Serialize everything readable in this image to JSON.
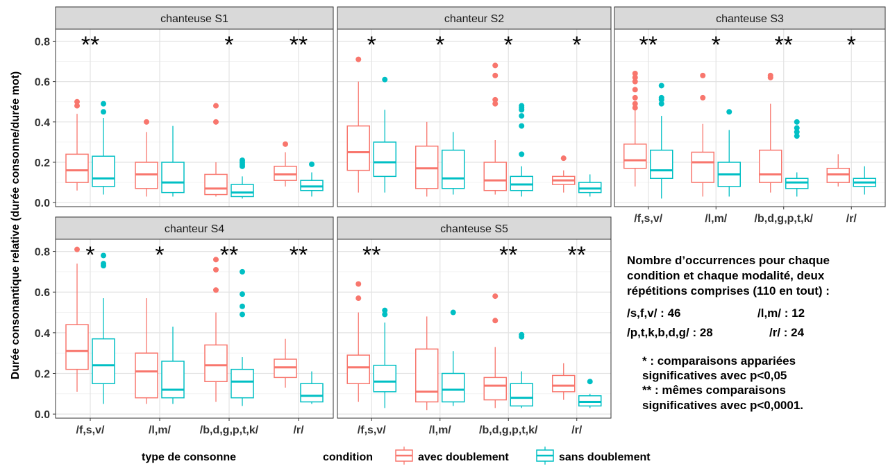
{
  "chart_data": {
    "type": "box",
    "ylabel": "Durée consonantique relative (durée consonne/durée mot)",
    "xlabel": "type de consonne",
    "categories": [
      "/f,s,v/",
      "/l,m/",
      "/b,d,g,p,t,k/",
      "/r/"
    ],
    "yticks": [
      "0.0",
      "0.2",
      "0.4",
      "0.6",
      "0.8"
    ],
    "ylim": [
      -0.02,
      0.86
    ],
    "legend": {
      "title": "condition",
      "items": [
        {
          "label": "avec doublement",
          "color": "#F8766D"
        },
        {
          "label": "sans doublement",
          "color": "#00BFC4"
        }
      ]
    },
    "panels": [
      {
        "title": "chanteuse S1",
        "stars": [
          "**",
          "",
          "*",
          "**"
        ],
        "boxes": [
          [
            {
              "min": 0.06,
              "q1": 0.1,
              "med": 0.16,
              "q3": 0.24,
              "max": 0.44,
              "out": [
                0.48,
                0.5
              ]
            },
            {
              "min": 0.04,
              "q1": 0.08,
              "med": 0.12,
              "q3": 0.23,
              "max": 0.42,
              "out": [
                0.45,
                0.49
              ]
            }
          ],
          [
            {
              "min": 0.03,
              "q1": 0.07,
              "med": 0.14,
              "q3": 0.2,
              "max": 0.35,
              "out": [
                0.4
              ]
            },
            {
              "min": 0.03,
              "q1": 0.05,
              "med": 0.1,
              "q3": 0.2,
              "max": 0.38,
              "out": []
            }
          ],
          [
            {
              "min": 0.03,
              "q1": 0.04,
              "med": 0.07,
              "q3": 0.14,
              "max": 0.2,
              "out": [
                0.4,
                0.48
              ]
            },
            {
              "min": 0.02,
              "q1": 0.03,
              "med": 0.05,
              "q3": 0.09,
              "max": 0.13,
              "out": [
                0.18,
                0.19,
                0.2,
                0.21
              ]
            }
          ],
          [
            {
              "min": 0.08,
              "q1": 0.11,
              "med": 0.14,
              "q3": 0.18,
              "max": 0.25,
              "out": [
                0.29
              ]
            },
            {
              "min": 0.03,
              "q1": 0.06,
              "med": 0.08,
              "q3": 0.11,
              "max": 0.15,
              "out": [
                0.19
              ]
            }
          ]
        ]
      },
      {
        "title": "chanteur S2",
        "stars": [
          "*",
          "*",
          "*",
          "*"
        ],
        "boxes": [
          [
            {
              "min": 0.05,
              "q1": 0.16,
              "med": 0.25,
              "q3": 0.38,
              "max": 0.6,
              "out": [
                0.71
              ]
            },
            {
              "min": 0.05,
              "q1": 0.13,
              "med": 0.2,
              "q3": 0.3,
              "max": 0.46,
              "out": [
                0.61
              ]
            }
          ],
          [
            {
              "min": 0.03,
              "q1": 0.07,
              "med": 0.17,
              "q3": 0.28,
              "max": 0.4,
              "out": []
            },
            {
              "min": 0.04,
              "q1": 0.07,
              "med": 0.12,
              "q3": 0.26,
              "max": 0.35,
              "out": []
            }
          ],
          [
            {
              "min": 0.04,
              "q1": 0.06,
              "med": 0.11,
              "q3": 0.2,
              "max": 0.31,
              "out": [
                0.49,
                0.51,
                0.63,
                0.68
              ]
            },
            {
              "min": 0.03,
              "q1": 0.06,
              "med": 0.09,
              "q3": 0.13,
              "max": 0.18,
              "out": [
                0.24,
                0.38,
                0.43,
                0.46,
                0.47,
                0.48
              ]
            }
          ],
          [
            {
              "min": 0.05,
              "q1": 0.09,
              "med": 0.11,
              "q3": 0.13,
              "max": 0.16,
              "out": [
                0.22
              ]
            },
            {
              "min": 0.03,
              "q1": 0.05,
              "med": 0.07,
              "q3": 0.1,
              "max": 0.14,
              "out": []
            }
          ]
        ]
      },
      {
        "title": "chanteuse S3",
        "stars": [
          "**",
          "*",
          "**",
          "*"
        ],
        "boxes": [
          [
            {
              "min": 0.08,
              "q1": 0.17,
              "med": 0.21,
              "q3": 0.29,
              "max": 0.46,
              "out": [
                0.47,
                0.49,
                0.52,
                0.56,
                0.6,
                0.62,
                0.64
              ]
            },
            {
              "min": 0.02,
              "q1": 0.12,
              "med": 0.16,
              "q3": 0.26,
              "max": 0.43,
              "out": [
                0.49,
                0.51,
                0.52,
                0.58
              ]
            }
          ],
          [
            {
              "min": 0.03,
              "q1": 0.1,
              "med": 0.2,
              "q3": 0.25,
              "max": 0.39,
              "out": [
                0.52,
                0.63
              ]
            },
            {
              "min": 0.03,
              "q1": 0.08,
              "med": 0.14,
              "q3": 0.2,
              "max": 0.36,
              "out": [
                0.45
              ]
            }
          ],
          [
            {
              "min": 0.05,
              "q1": 0.1,
              "med": 0.14,
              "q3": 0.26,
              "max": 0.49,
              "out": [
                0.62,
                0.63
              ]
            },
            {
              "min": 0.03,
              "q1": 0.07,
              "med": 0.1,
              "q3": 0.12,
              "max": 0.15,
              "out": [
                0.33,
                0.35,
                0.37,
                0.4
              ]
            }
          ],
          [
            {
              "min": 0.08,
              "q1": 0.1,
              "med": 0.14,
              "q3": 0.17,
              "max": 0.24,
              "out": []
            },
            {
              "min": 0.04,
              "q1": 0.08,
              "med": 0.1,
              "q3": 0.12,
              "max": 0.18,
              "out": []
            }
          ]
        ]
      },
      {
        "title": "chanteur S4",
        "stars": [
          "*",
          "*",
          "**",
          "**"
        ],
        "boxes": [
          [
            {
              "min": 0.11,
              "q1": 0.22,
              "med": 0.31,
              "q3": 0.44,
              "max": 0.74,
              "out": [
                0.81
              ]
            },
            {
              "min": 0.05,
              "q1": 0.15,
              "med": 0.24,
              "q3": 0.37,
              "max": 0.57,
              "out": [
                0.73,
                0.74,
                0.78
              ]
            }
          ],
          [
            {
              "min": 0.05,
              "q1": 0.08,
              "med": 0.21,
              "q3": 0.3,
              "max": 0.57,
              "out": []
            },
            {
              "min": 0.05,
              "q1": 0.08,
              "med": 0.12,
              "q3": 0.26,
              "max": 0.43,
              "out": []
            }
          ],
          [
            {
              "min": 0.06,
              "q1": 0.16,
              "med": 0.24,
              "q3": 0.34,
              "max": 0.5,
              "out": [
                0.61,
                0.71,
                0.76
              ]
            },
            {
              "min": 0.04,
              "q1": 0.08,
              "med": 0.16,
              "q3": 0.22,
              "max": 0.28,
              "out": [
                0.49,
                0.53,
                0.59,
                0.7
              ]
            }
          ],
          [
            {
              "min": 0.13,
              "q1": 0.18,
              "med": 0.23,
              "q3": 0.27,
              "max": 0.37,
              "out": []
            },
            {
              "min": 0.05,
              "q1": 0.06,
              "med": 0.09,
              "q3": 0.15,
              "max": 0.21,
              "out": []
            }
          ]
        ]
      },
      {
        "title": "chanteuse S5",
        "stars": [
          "**",
          "",
          "**",
          "**"
        ],
        "boxes": [
          [
            {
              "min": 0.06,
              "q1": 0.15,
              "med": 0.23,
              "q3": 0.29,
              "max": 0.5,
              "out": [
                0.57,
                0.64
              ]
            },
            {
              "min": 0.03,
              "q1": 0.11,
              "med": 0.16,
              "q3": 0.24,
              "max": 0.45,
              "out": [
                0.49,
                0.51
              ]
            }
          ],
          [
            {
              "min": 0.02,
              "q1": 0.06,
              "med": 0.11,
              "q3": 0.32,
              "max": 0.48,
              "out": []
            },
            {
              "min": 0.04,
              "q1": 0.06,
              "med": 0.12,
              "q3": 0.2,
              "max": 0.31,
              "out": [
                0.5
              ]
            }
          ],
          [
            {
              "min": 0.03,
              "q1": 0.07,
              "med": 0.14,
              "q3": 0.18,
              "max": 0.33,
              "out": [
                0.46,
                0.58
              ]
            },
            {
              "min": 0.03,
              "q1": 0.04,
              "med": 0.08,
              "q3": 0.15,
              "max": 0.21,
              "out": [
                0.38,
                0.39
              ]
            }
          ],
          [
            {
              "min": 0.07,
              "q1": 0.11,
              "med": 0.14,
              "q3": 0.19,
              "max": 0.25,
              "out": []
            },
            {
              "min": 0.03,
              "q1": 0.04,
              "med": 0.06,
              "q3": 0.09,
              "max": 0.1,
              "out": [
                0.16
              ]
            }
          ]
        ]
      }
    ]
  },
  "notes": {
    "count_title_1": "Nombre d’occurrences pour chaque",
    "count_title_2": "condition et chaque modalité, deux",
    "count_title_3": "répétitions comprises (110 en tout) :",
    "count_fsv": "/s,f,v/ : 46",
    "count_lm": "/l,m/ : 12",
    "count_ptk": "/p,t,k,b,d,g/ : 28",
    "count_r": "/r/ : 24",
    "sig_1": "* : comparaisons appariées",
    "sig_2": "significatives avec p<0,05",
    "sig_3": "** : mêmes comparaisons",
    "sig_4": "significatives avec p<0,0001."
  }
}
